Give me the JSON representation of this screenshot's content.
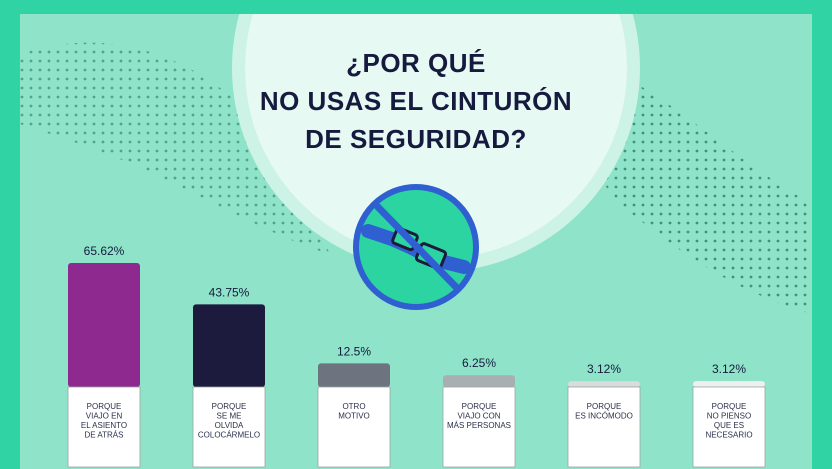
{
  "title_lines": [
    "¿POR QUÉ",
    "NO USAS EL CINTURÓN",
    "DE SEGURIDAD?"
  ],
  "icon": "seatbelt-crossed-icon",
  "colors": {
    "frame": "#2fd3a4",
    "background": "#8fe3c8",
    "circle": "#e6f9f2",
    "icon_blue": "#2f5fd0",
    "icon_fill": "#2bd4a0",
    "text": "#161a3e"
  },
  "chart_data": {
    "type": "bar",
    "categories": [
      "PORQUE VIAJO EN EL ASIENTO DE ATRÁS",
      "PORQUE SE ME OLVIDA COLOCÁRMELO",
      "OTRO MOTIVO",
      "PORQUE VIAJO CON MÁS PERSONAS",
      "PORQUE ES INCÓMODO",
      "PORQUE NO PIENSO QUE ES NECESARIO"
    ],
    "category_lines": [
      [
        "PORQUE",
        "VIAJO EN",
        "EL ASIENTO",
        "DE ATRÁS"
      ],
      [
        "PORQUE",
        "SE ME",
        "OLVIDA",
        "COLOCÁRMELO"
      ],
      [
        "OTRO",
        "MOTIVO"
      ],
      [
        "PORQUE",
        "VIAJO CON",
        "MÁS PERSONAS"
      ],
      [
        "PORQUE",
        "ES INCÓMODO"
      ],
      [
        "PORQUE",
        "NO PIENSO",
        "QUE ES",
        "NECESARIO"
      ]
    ],
    "values": [
      65.62,
      43.75,
      12.5,
      6.25,
      3.12,
      3.12
    ],
    "value_labels": [
      "65.62%",
      "43.75%",
      "12.5%",
      "6.25%",
      "3.12%",
      "3.12%"
    ],
    "bar_colors": [
      "#8e2a8f",
      "#1c1a3d",
      "#6d7480",
      "#a9aeb3",
      "#d8dcdc",
      "#eef0ef"
    ],
    "ylim": [
      0,
      70
    ],
    "grid": false,
    "legend": "none"
  }
}
